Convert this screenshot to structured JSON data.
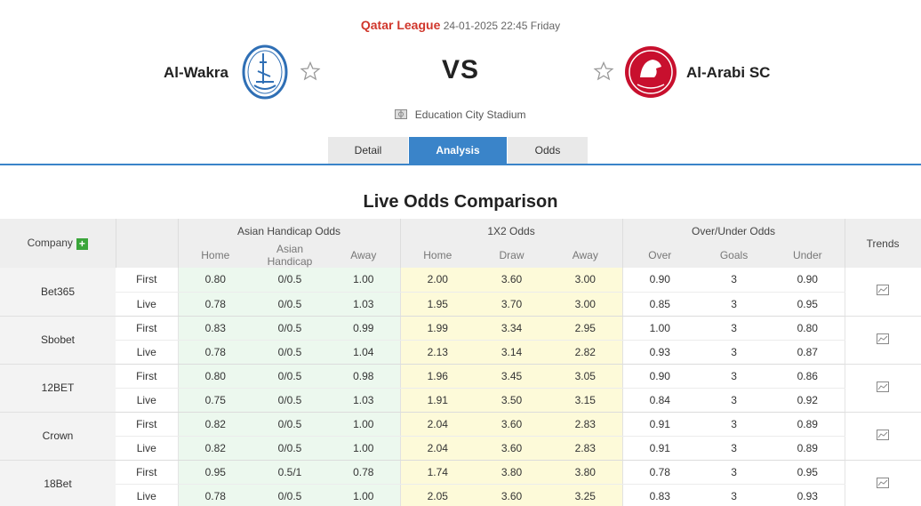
{
  "match": {
    "league": "Qatar League",
    "datetime": "24-01-2025 22:45 Friday",
    "home_team": "Al-Wakra",
    "away_team": "Al-Arabi SC",
    "vs": "VS",
    "stadium": "Education City Stadium"
  },
  "tabs": [
    {
      "label": "Detail",
      "active": false
    },
    {
      "label": "Analysis",
      "active": true
    },
    {
      "label": "Odds",
      "active": false
    }
  ],
  "section_title": "Live Odds Comparison",
  "table": {
    "company_header": "Company",
    "trends_header": "Trends",
    "groups": {
      "ah": "Asian Handicap Odds",
      "x12": "1X2 Odds",
      "ou": "Over/Under Odds"
    },
    "subheaders": {
      "ah": [
        "Home",
        "Asian Handicap",
        "Away"
      ],
      "x12": [
        "Home",
        "Draw",
        "Away"
      ],
      "ou": [
        "Over",
        "Goals",
        "Under"
      ]
    },
    "companies": [
      {
        "name": "Bet365",
        "rows": [
          {
            "type": "First",
            "ah": [
              "0.80",
              "0/0.5",
              "1.00"
            ],
            "x12": [
              "2.00",
              "3.60",
              "3.00"
            ],
            "ou": [
              "0.90",
              "3",
              "0.90"
            ]
          },
          {
            "type": "Live",
            "ah": [
              "0.78",
              "0/0.5",
              "1.03"
            ],
            "x12": [
              "1.95",
              "3.70",
              "3.00"
            ],
            "ou": [
              "0.85",
              "3",
              "0.95"
            ]
          }
        ]
      },
      {
        "name": "Sbobet",
        "rows": [
          {
            "type": "First",
            "ah": [
              "0.83",
              "0/0.5",
              "0.99"
            ],
            "x12": [
              "1.99",
              "3.34",
              "2.95"
            ],
            "ou": [
              "1.00",
              "3",
              "0.80"
            ]
          },
          {
            "type": "Live",
            "ah": [
              "0.78",
              "0/0.5",
              "1.04"
            ],
            "x12": [
              "2.13",
              "3.14",
              "2.82"
            ],
            "ou": [
              "0.93",
              "3",
              "0.87"
            ]
          }
        ]
      },
      {
        "name": "12BET",
        "rows": [
          {
            "type": "First",
            "ah": [
              "0.80",
              "0/0.5",
              "0.98"
            ],
            "x12": [
              "1.96",
              "3.45",
              "3.05"
            ],
            "ou": [
              "0.90",
              "3",
              "0.86"
            ]
          },
          {
            "type": "Live",
            "ah": [
              "0.75",
              "0/0.5",
              "1.03"
            ],
            "x12": [
              "1.91",
              "3.50",
              "3.15"
            ],
            "ou": [
              "0.84",
              "3",
              "0.92"
            ]
          }
        ]
      },
      {
        "name": "Crown",
        "rows": [
          {
            "type": "First",
            "ah": [
              "0.82",
              "0/0.5",
              "1.00"
            ],
            "x12": [
              "2.04",
              "3.60",
              "2.83"
            ],
            "ou": [
              "0.91",
              "3",
              "0.89"
            ]
          },
          {
            "type": "Live",
            "ah": [
              "0.82",
              "0/0.5",
              "1.00"
            ],
            "x12": [
              "2.04",
              "3.60",
              "2.83"
            ],
            "ou": [
              "0.91",
              "3",
              "0.89"
            ]
          }
        ]
      },
      {
        "name": "18Bet",
        "rows": [
          {
            "type": "First",
            "ah": [
              "0.95",
              "0.5/1",
              "0.78"
            ],
            "x12": [
              "1.74",
              "3.80",
              "3.80"
            ],
            "ou": [
              "0.78",
              "3",
              "0.95"
            ]
          },
          {
            "type": "Live",
            "ah": [
              "0.78",
              "0/0.5",
              "1.00"
            ],
            "x12": [
              "2.05",
              "3.60",
              "3.25"
            ],
            "ou": [
              "0.83",
              "3",
              "0.93"
            ]
          }
        ]
      }
    ]
  },
  "icons": {
    "star": "star-outline-icon",
    "stadium": "stadium-icon",
    "plus": "plus-icon",
    "trend": "trend-chart-icon"
  },
  "colors": {
    "league": "#d0362b",
    "accent": "#3a84c9",
    "ah_bg": "#ecf8ee",
    "x12_bg": "#fdfad9",
    "plus_bg": "#3aa53a",
    "home_logo": "#2f6fb5",
    "away_logo": "#c8102e"
  }
}
